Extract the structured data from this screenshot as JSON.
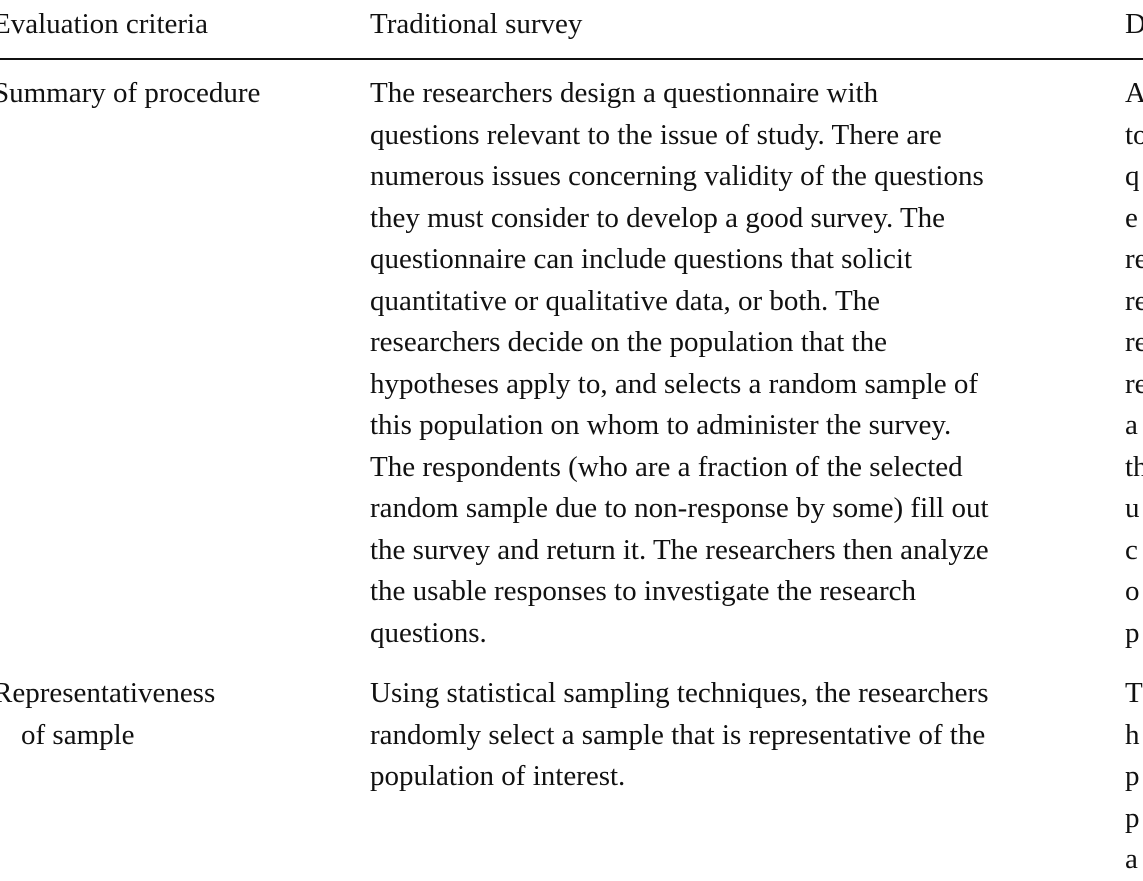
{
  "table": {
    "header": [
      "Evaluation criteria",
      "Traditional survey",
      "D"
    ],
    "rows": [
      [
        [
          "Summary of procedure"
        ],
        [
          "The researchers design a questionnaire with",
          "questions relevant to the issue of study. There are",
          "numerous issues concerning validity of the questions",
          "they must consider to develop a good survey. The",
          "questionnaire can include questions that solicit",
          "quantitative or qualitative data, or both. The",
          "researchers decide on the population that the",
          "hypotheses apply to, and selects a random sample of",
          "this population on whom to administer the survey.",
          "The respondents (who are a fraction of the selected",
          "random sample due to non-response by some) fill out",
          "the survey and return it. The researchers then analyze",
          "the usable responses to investigate the research",
          "questions."
        ],
        [
          "A",
          "to",
          "q",
          "e",
          "re",
          "re",
          "re",
          "re",
          "a",
          "th",
          "u",
          "c",
          "o",
          "p"
        ]
      ],
      [
        [
          "Representativeness",
          "of sample"
        ],
        [
          "Using statistical sampling techniques, the researchers",
          "randomly select a sample that is representative of the",
          "population of interest."
        ],
        [
          "T",
          "h",
          "p",
          "p",
          "a"
        ]
      ]
    ]
  }
}
